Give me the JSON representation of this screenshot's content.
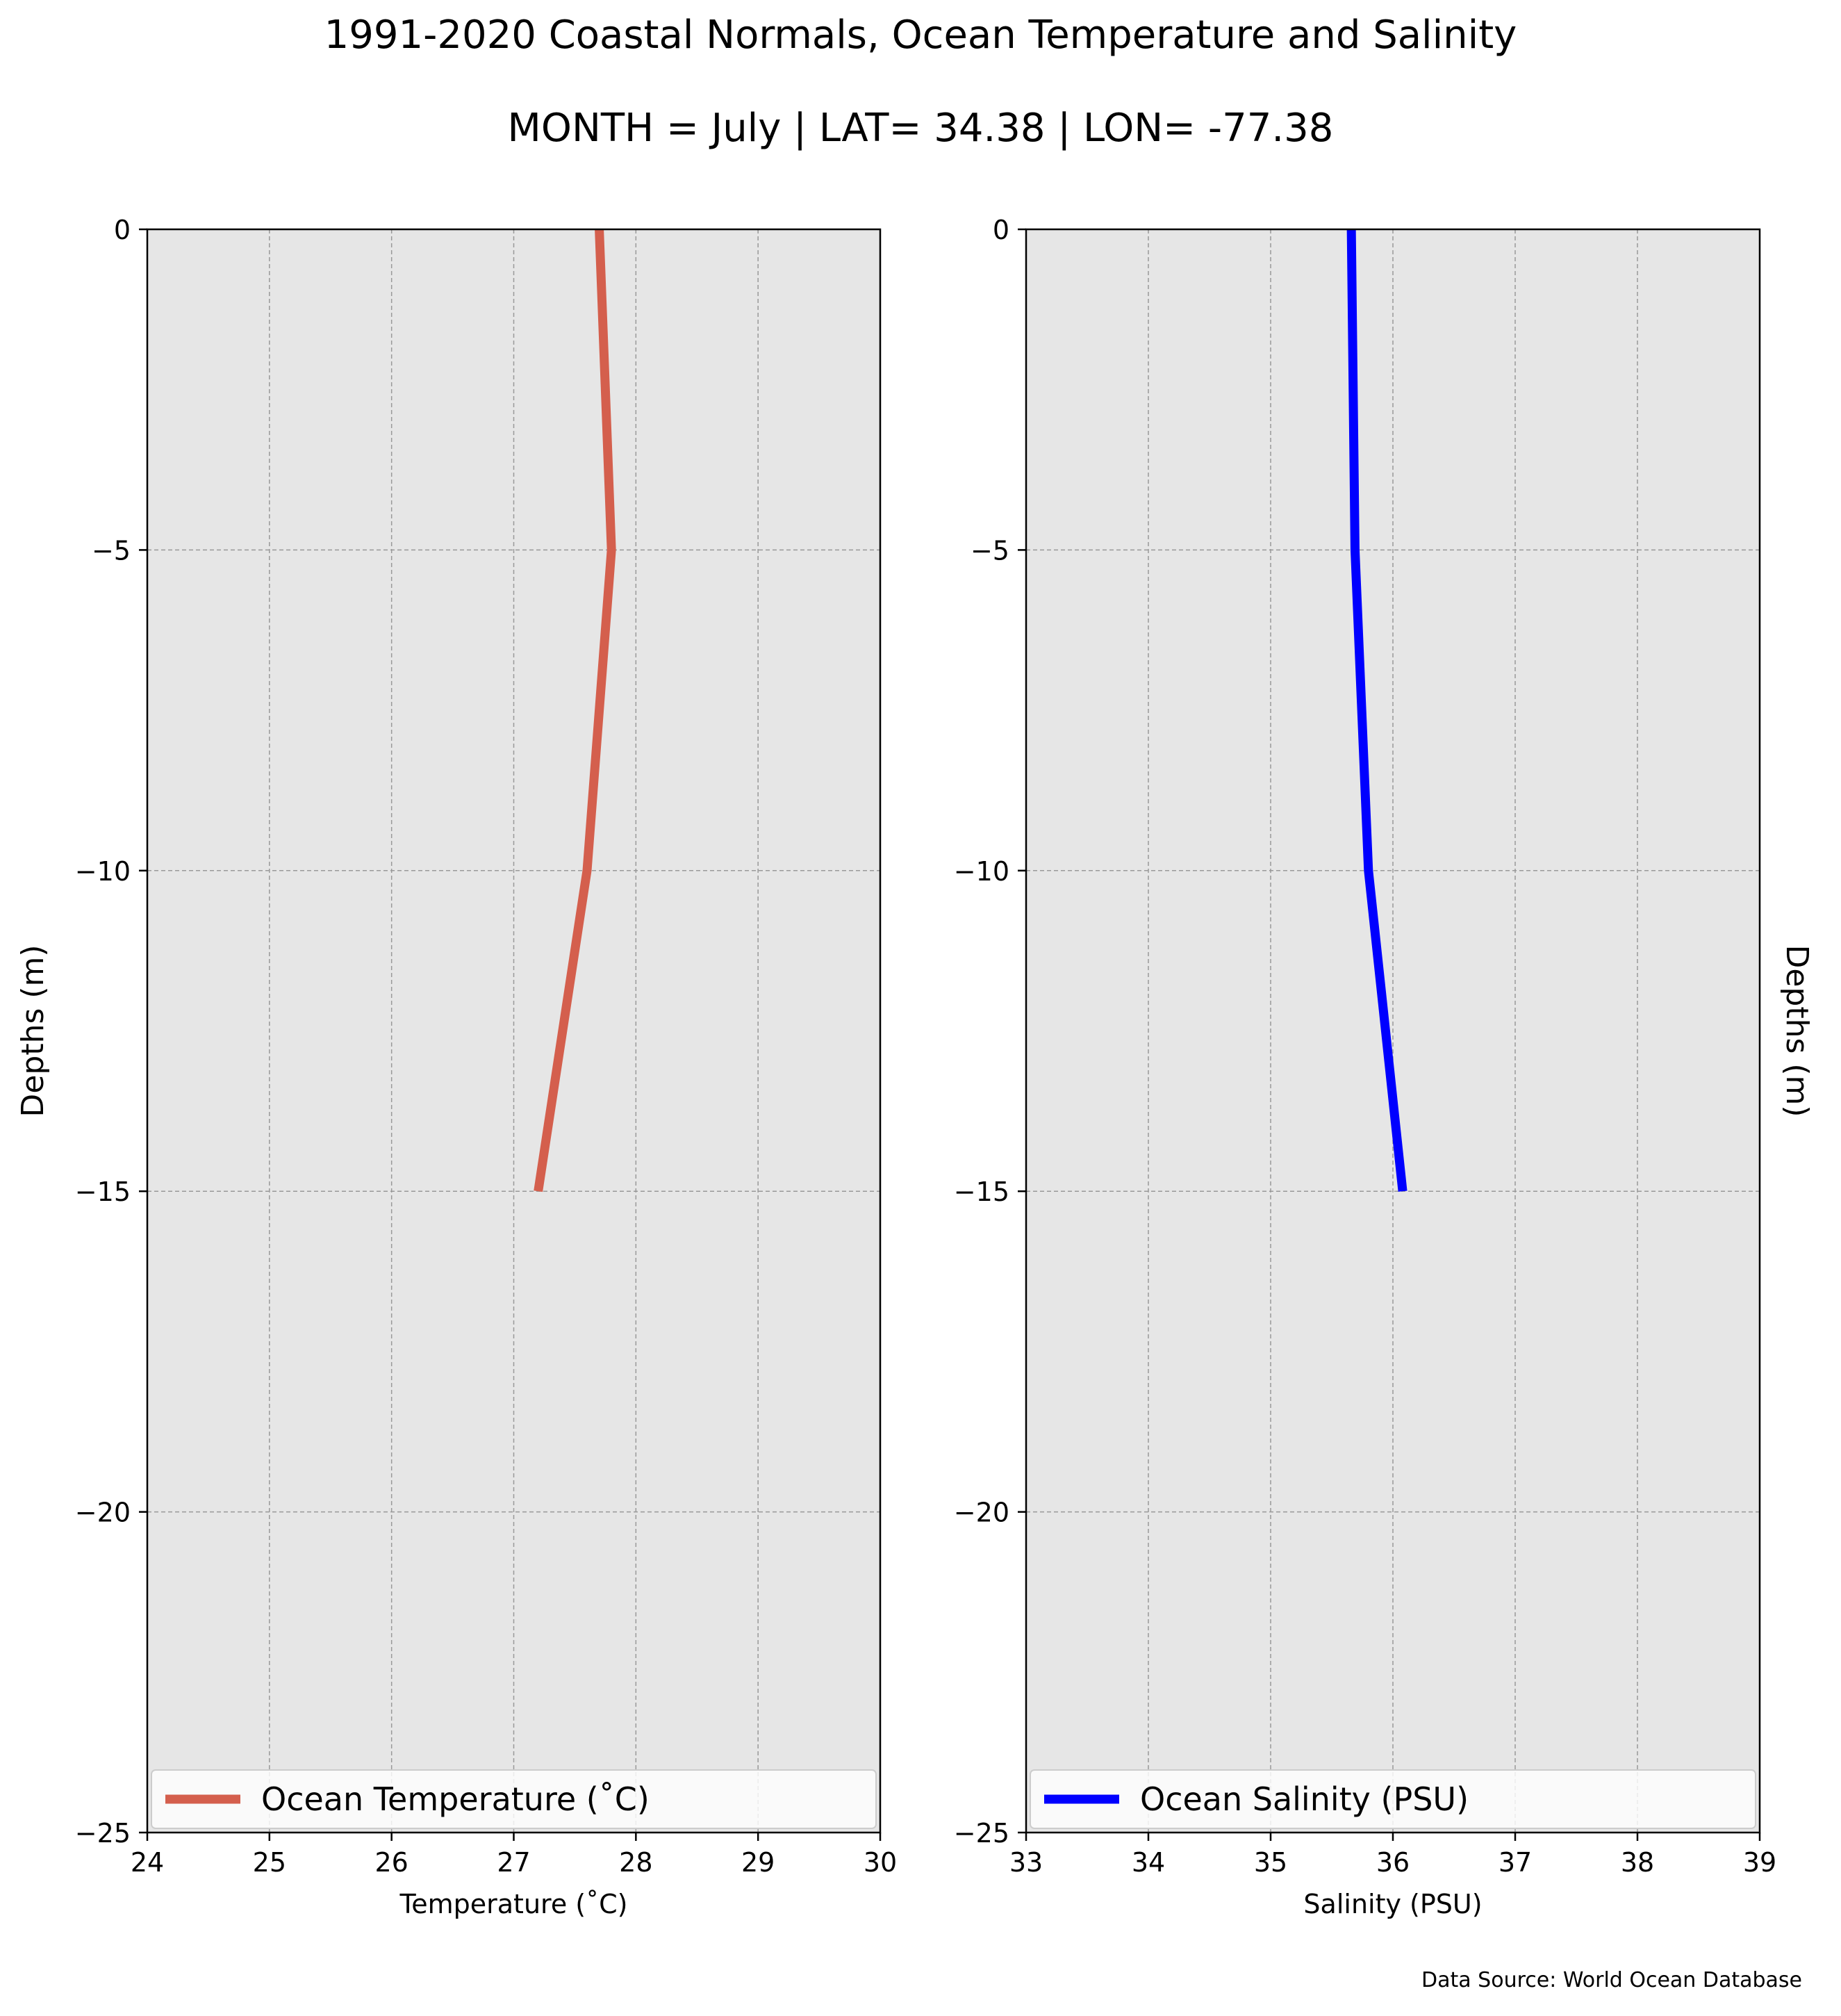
{
  "title": "1991-2020 Coastal Normals, Ocean Temperature and Salinity",
  "subtitle": "MONTH = July | LAT= 34.38 | LON= -77.38",
  "source_note": "Data Source: World Ocean Database",
  "colors": {
    "background": "#e6e6e6",
    "temperature": "#d45f4d",
    "salinity": "#0000ff",
    "grid": "#999999"
  },
  "chart_data": [
    {
      "type": "line",
      "xlabel": "Temperature (˚C)",
      "ylabel": "Depths (m)",
      "xlim": [
        24,
        30
      ],
      "ylim": [
        -25,
        0
      ],
      "xticks": [
        24,
        25,
        26,
        27,
        28,
        29,
        30
      ],
      "yticks": [
        0,
        -5,
        -10,
        -15,
        -20,
        -25
      ],
      "ytick_labels": [
        "0",
        "−5",
        "−10",
        "−15",
        "−20",
        "−25"
      ],
      "ylabel_side": "left",
      "grid": true,
      "legend_position": "lower-center",
      "series": [
        {
          "name": "Ocean Temperature (˚C)",
          "color": "#d45f4d",
          "x": [
            27.7,
            27.8,
            27.6,
            27.2
          ],
          "y": [
            0,
            -5,
            -10,
            -15
          ]
        }
      ]
    },
    {
      "type": "line",
      "xlabel": "Salinity (PSU)",
      "ylabel": "Depths (m)",
      "xlim": [
        33,
        39
      ],
      "ylim": [
        -25,
        0
      ],
      "xticks": [
        33,
        34,
        35,
        36,
        37,
        38,
        39
      ],
      "yticks": [
        0,
        -5,
        -10,
        -15,
        -20,
        -25
      ],
      "ytick_labels": [
        "0",
        "−5",
        "−10",
        "−15",
        "−20",
        "−25"
      ],
      "ylabel_side": "right",
      "grid": true,
      "legend_position": "lower-center",
      "series": [
        {
          "name": "Ocean Salinity (PSU)",
          "color": "#0000ff",
          "x": [
            35.66,
            35.69,
            35.8,
            36.08
          ],
          "y": [
            0,
            -5,
            -10,
            -15
          ]
        }
      ]
    }
  ]
}
